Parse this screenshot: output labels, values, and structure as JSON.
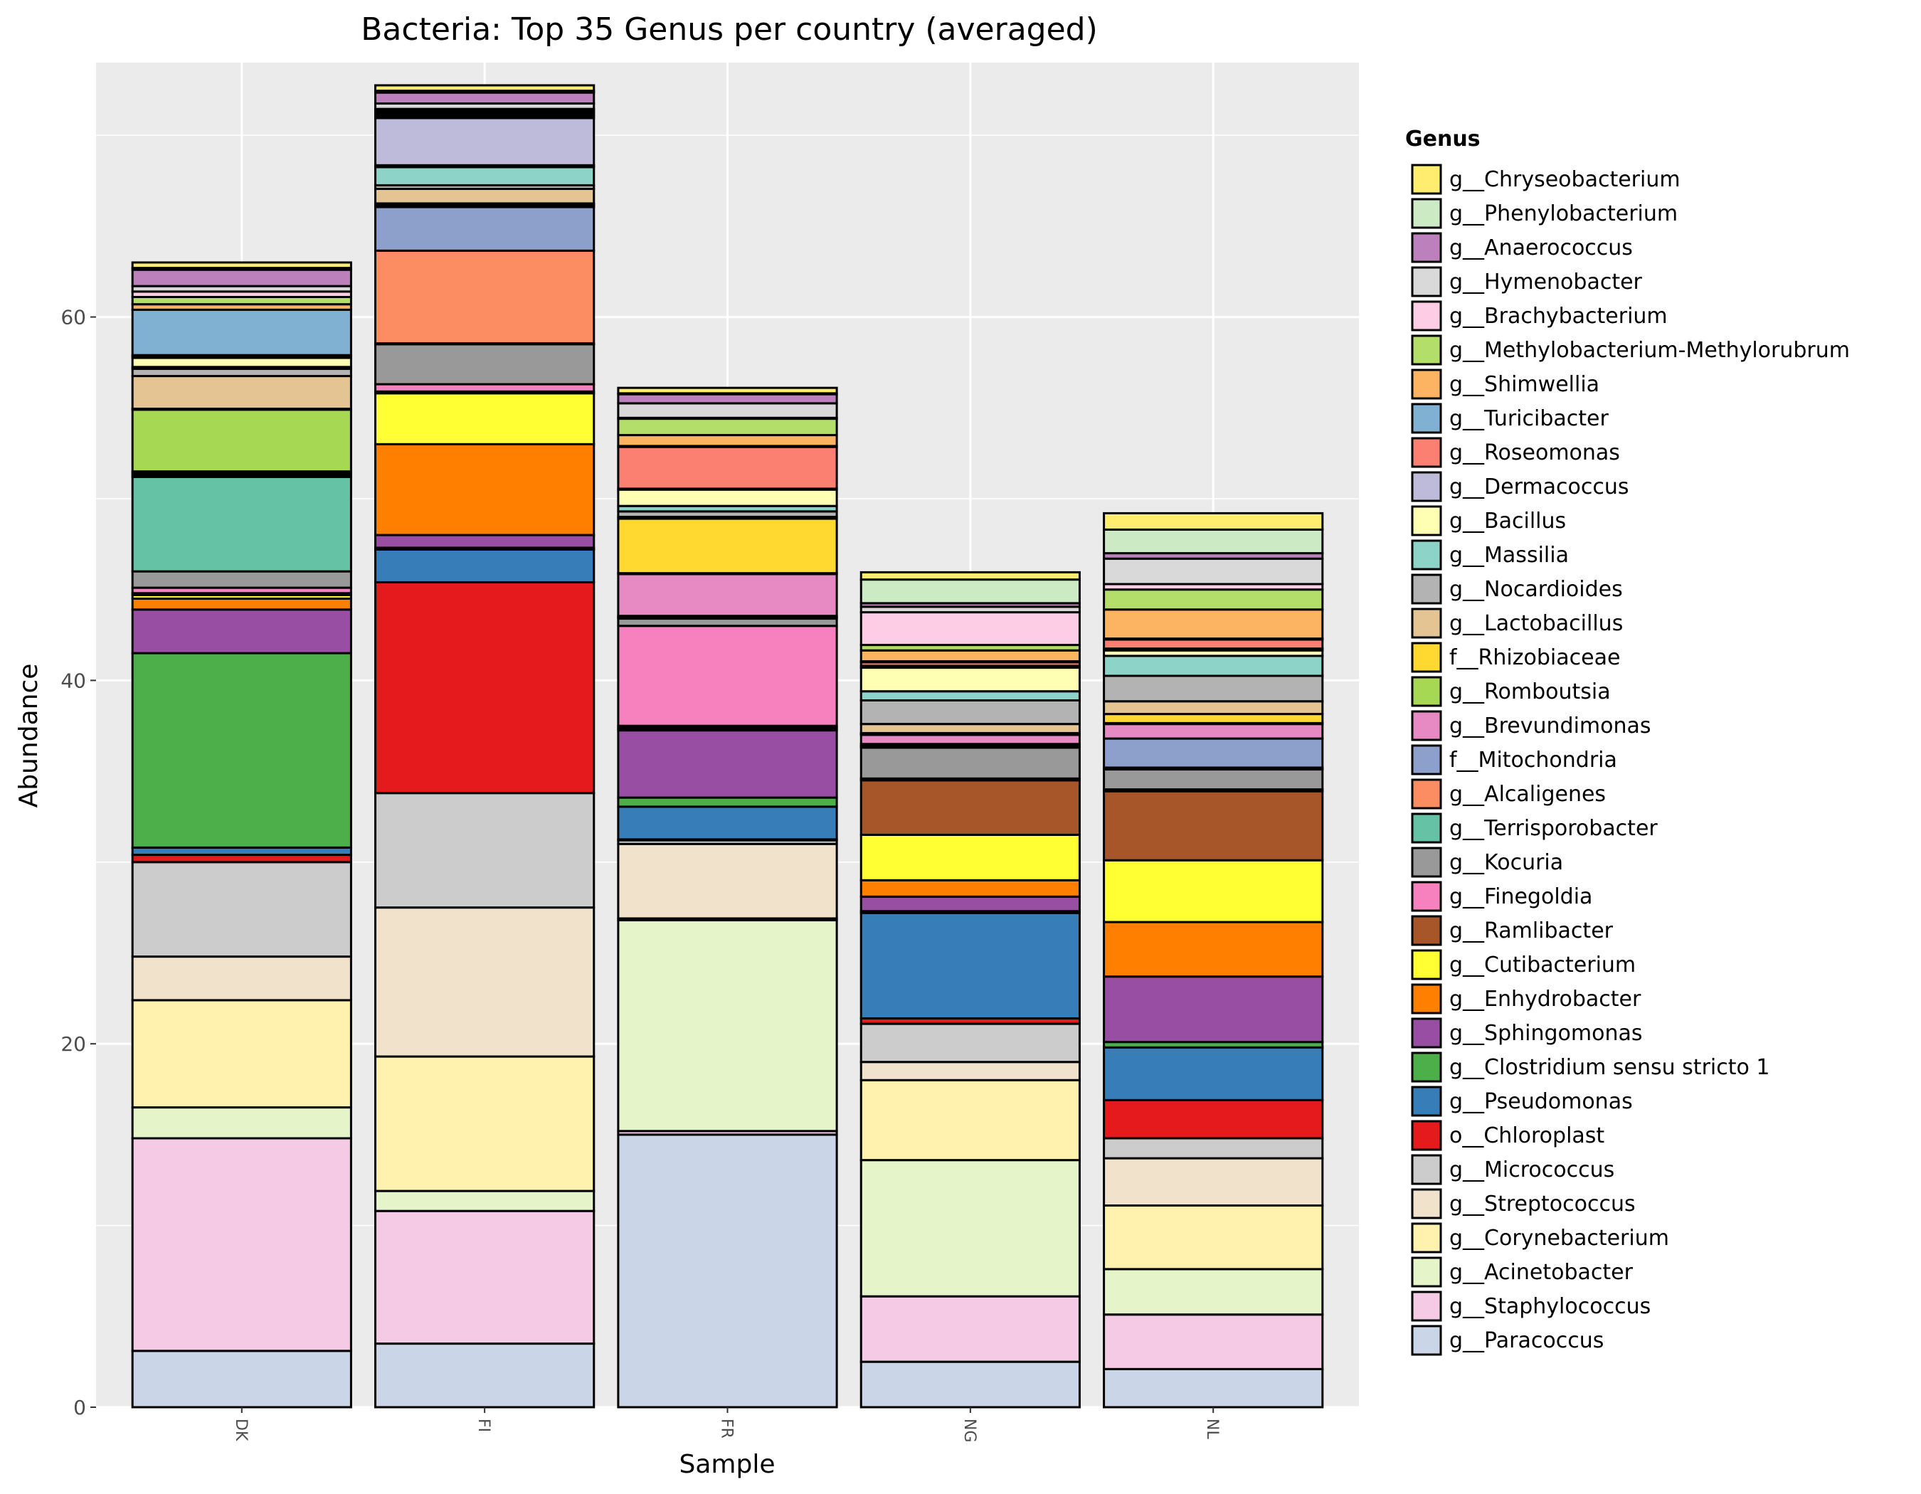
{
  "chart_data": {
    "type": "bar",
    "stacked": true,
    "title": "Bacteria: Top 35 Genus per country (averaged)",
    "xlabel": "Sample",
    "ylabel": "Abundance",
    "ylim": [
      0,
      74
    ],
    "yticks": [
      0,
      20,
      40,
      60
    ],
    "grid": true,
    "legend_position": "right",
    "legend_title": "Genus",
    "categories": [
      "DK",
      "FI",
      "FR",
      "NG",
      "NL"
    ],
    "legend": [
      {
        "name": "g__Chryseobacterium",
        "color": "#FFED6F"
      },
      {
        "name": "g__Phenylobacterium",
        "color": "#CCEBC5"
      },
      {
        "name": "g__Anaerococcus",
        "color": "#BC80BD"
      },
      {
        "name": "g__Hymenobacter",
        "color": "#D9D9D9"
      },
      {
        "name": "g__Brachybacterium",
        "color": "#FCCDE5"
      },
      {
        "name": "g__Methylobacterium-Methylorubrum",
        "color": "#B3DE69"
      },
      {
        "name": "g__Shimwellia",
        "color": "#FDB462"
      },
      {
        "name": "g__Turicibacter",
        "color": "#80B1D3"
      },
      {
        "name": "g__Roseomonas",
        "color": "#FB8072"
      },
      {
        "name": "g__Dermacoccus",
        "color": "#BEBADA"
      },
      {
        "name": "g__Bacillus",
        "color": "#FFFFB3"
      },
      {
        "name": "g__Massilia",
        "color": "#8DD3C7"
      },
      {
        "name": "g__Nocardioides",
        "color": "#B3B3B3"
      },
      {
        "name": "g__Lactobacillus",
        "color": "#E5C494"
      },
      {
        "name": "f__Rhizobiaceae",
        "color": "#FFD92F"
      },
      {
        "name": "g__Romboutsia",
        "color": "#A6D854"
      },
      {
        "name": "g__Brevundimonas",
        "color": "#E78AC3"
      },
      {
        "name": "f__Mitochondria",
        "color": "#8DA0CB"
      },
      {
        "name": "g__Alcaligenes",
        "color": "#FC8D62"
      },
      {
        "name": "g__Terrisporobacter",
        "color": "#66C2A5"
      },
      {
        "name": "g__Kocuria",
        "color": "#999999"
      },
      {
        "name": "g__Finegoldia",
        "color": "#F781BF"
      },
      {
        "name": "g__Ramlibacter",
        "color": "#A65628"
      },
      {
        "name": "g__Cutibacterium",
        "color": "#FFFF33"
      },
      {
        "name": "g__Enhydrobacter",
        "color": "#FF7F00"
      },
      {
        "name": "g__Sphingomonas",
        "color": "#984EA3"
      },
      {
        "name": "g__Clostridium sensu stricto 1",
        "color": "#4DAF4A"
      },
      {
        "name": "g__Pseudomonas",
        "color": "#377EB8"
      },
      {
        "name": "o__Chloroplast",
        "color": "#E41A1C"
      },
      {
        "name": "g__Micrococcus",
        "color": "#CCCCCC"
      },
      {
        "name": "g__Streptococcus",
        "color": "#F1E2CC"
      },
      {
        "name": "g__Corynebacterium",
        "color": "#FFF2AE"
      },
      {
        "name": "g__Acinetobacter",
        "color": "#E6F5C9"
      },
      {
        "name": "g__Staphylococcus",
        "color": "#F4CAE4"
      },
      {
        "name": "g__Paracoccus",
        "color": "#CBD5E8"
      }
    ],
    "series": [
      {
        "name": "g__Paracoccus",
        "values": [
          3.1,
          3.5,
          15.0,
          2.5,
          2.1
        ]
      },
      {
        "name": "g__Staphylococcus",
        "values": [
          11.7,
          7.3,
          0.2,
          3.6,
          3.0
        ]
      },
      {
        "name": "g__Acinetobacter",
        "values": [
          1.7,
          1.1,
          11.6,
          7.5,
          2.5
        ]
      },
      {
        "name": "g__Corynebacterium",
        "values": [
          5.9,
          7.4,
          0.1,
          4.4,
          3.5
        ]
      },
      {
        "name": "g__Streptococcus",
        "values": [
          2.4,
          8.2,
          4.1,
          1.0,
          2.6
        ]
      },
      {
        "name": "g__Micrococcus",
        "values": [
          5.2,
          6.3,
          0.2,
          2.1,
          1.1
        ]
      },
      {
        "name": "o__Chloroplast",
        "values": [
          0.4,
          11.6,
          0.05,
          0.3,
          2.1
        ]
      },
      {
        "name": "g__Pseudomonas",
        "values": [
          0.4,
          1.8,
          1.8,
          5.8,
          2.9
        ]
      },
      {
        "name": "g__Clostridium sensu stricto 1",
        "values": [
          10.7,
          0.1,
          0.5,
          0.1,
          0.3
        ]
      },
      {
        "name": "g__Sphingomonas",
        "values": [
          2.4,
          0.7,
          3.7,
          0.8,
          3.6
        ]
      },
      {
        "name": "g__Enhydrobacter",
        "values": [
          0.6,
          5.0,
          0.1,
          0.9,
          3.0
        ]
      },
      {
        "name": "g__Cutibacterium",
        "values": [
          0.2,
          2.8,
          0.1,
          2.5,
          3.4
        ]
      },
      {
        "name": "g__Ramlibacter",
        "values": [
          0.1,
          0.1,
          0.05,
          3.0,
          3.8
        ]
      },
      {
        "name": "g__Finegoldia",
        "values": [
          0.3,
          0.4,
          5.5,
          0.1,
          0.1
        ]
      },
      {
        "name": "g__Kocuria",
        "values": [
          0.9,
          2.2,
          0.4,
          1.7,
          1.1
        ]
      },
      {
        "name": "g__Terrisporobacter",
        "values": [
          5.2,
          0.05,
          0.05,
          0.05,
          0.05
        ]
      },
      {
        "name": "g__Alcaligenes",
        "values": [
          0.1,
          5.1,
          0.05,
          0.05,
          0.05
        ]
      },
      {
        "name": "f__Mitochondria",
        "values": [
          0.1,
          2.4,
          0.05,
          0.1,
          1.6
        ]
      },
      {
        "name": "g__Brevundimonas",
        "values": [
          0.1,
          0.1,
          2.3,
          0.5,
          0.8
        ]
      },
      {
        "name": "g__Romboutsia",
        "values": [
          3.4,
          0.05,
          0.05,
          0.05,
          0.05
        ]
      },
      {
        "name": "f__Rhizobiaceae",
        "values": [
          0.05,
          0.05,
          3.0,
          0.05,
          0.5
        ]
      },
      {
        "name": "g__Lactobacillus",
        "values": [
          1.8,
          0.8,
          0.1,
          0.5,
          0.7
        ]
      },
      {
        "name": "g__Nocardioides",
        "values": [
          0.4,
          0.2,
          0.3,
          1.3,
          1.4
        ]
      },
      {
        "name": "g__Massilia",
        "values": [
          0.1,
          1.0,
          0.3,
          0.5,
          1.1
        ]
      },
      {
        "name": "g__Bacillus",
        "values": [
          0.5,
          0.1,
          0.9,
          1.3,
          0.3
        ]
      },
      {
        "name": "g__Dermacoccus",
        "values": [
          0.1,
          2.6,
          0.05,
          0.1,
          0.1
        ]
      },
      {
        "name": "g__Roseomonas",
        "values": [
          0.05,
          0.1,
          2.3,
          0.2,
          0.5
        ]
      },
      {
        "name": "g__Turicibacter",
        "values": [
          2.5,
          0.1,
          0.05,
          0.05,
          0.05
        ]
      },
      {
        "name": "g__Shimwellia",
        "values": [
          0.3,
          0.1,
          0.6,
          0.6,
          1.6
        ]
      },
      {
        "name": "g__Methylobacterium-Methylorubrum",
        "values": [
          0.4,
          0.1,
          0.9,
          0.3,
          1.1
        ]
      },
      {
        "name": "g__Brachybacterium",
        "values": [
          0.3,
          0.1,
          0.05,
          1.8,
          0.3
        ]
      },
      {
        "name": "g__Hymenobacter",
        "values": [
          0.3,
          0.3,
          0.8,
          0.3,
          1.4
        ]
      },
      {
        "name": "g__Anaerococcus",
        "values": [
          0.9,
          0.6,
          0.5,
          0.2,
          0.3
        ]
      },
      {
        "name": "g__Phenylobacterium",
        "values": [
          0.1,
          0.1,
          0.05,
          1.3,
          1.3
        ]
      },
      {
        "name": "g__Chryseobacterium",
        "values": [
          0.3,
          0.3,
          0.3,
          0.4,
          0.9
        ]
      }
    ]
  }
}
